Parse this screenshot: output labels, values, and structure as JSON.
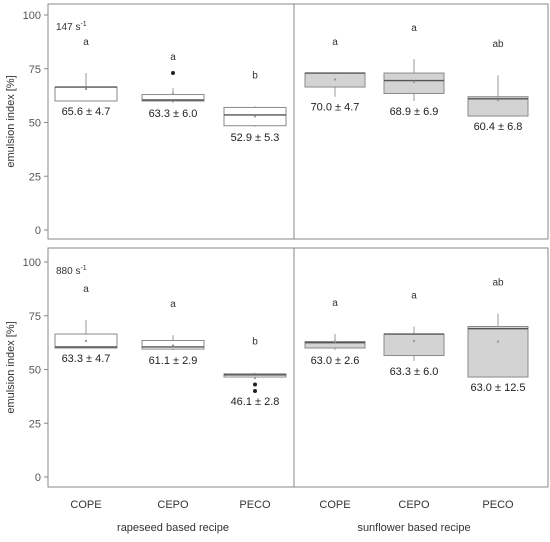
{
  "chart_data": {
    "type": "boxplot",
    "categories": [
      "COPE",
      "CEPO",
      "PECO"
    ],
    "groups": [
      {
        "name": "rapeseed based recipe",
        "fill": "#ffffff"
      },
      {
        "name": "sunflower based recipe",
        "fill": "#d3d3d3"
      }
    ],
    "ylabel": "emulsion index [%]",
    "ylim": [
      0,
      100
    ],
    "yticks": [
      "0",
      "25",
      "50",
      "75",
      "100"
    ],
    "rows": [
      {
        "rate_label": "147 s",
        "rate_sup": "-1",
        "boxes": [
          {
            "group": 0,
            "category": "COPE",
            "whisker_low": 60,
            "q1": 60,
            "median": 66.5,
            "q3": 66.5,
            "whisker_high": 73,
            "mean": 65.6,
            "outliers": [],
            "sig": "a",
            "label": "65.6 ± 4.7"
          },
          {
            "group": 0,
            "category": "CEPO",
            "whisker_low": 59,
            "q1": 60,
            "median": 60.5,
            "q3": 63,
            "whisker_high": 66,
            "mean": 63.3,
            "outliers": [
              73
            ],
            "sig": "a",
            "label": "63.3 ± 6.0"
          },
          {
            "group": 0,
            "category": "PECO",
            "whisker_low": 48,
            "q1": 48.5,
            "median": 53.5,
            "q3": 57,
            "whisker_high": 57.5,
            "mean": 52.9,
            "outliers": [],
            "sig": "b",
            "label": "52.9 ± 5.3"
          },
          {
            "group": 1,
            "category": "COPE",
            "whisker_low": 62,
            "q1": 66.5,
            "median": 73,
            "q3": 73,
            "whisker_high": 73,
            "mean": 70.0,
            "outliers": [],
            "sig": "a",
            "label": "70.0 ± 4.7"
          },
          {
            "group": 1,
            "category": "CEPO",
            "whisker_low": 60,
            "q1": 63.5,
            "median": 69.5,
            "q3": 73,
            "whisker_high": 79.5,
            "mean": 68.9,
            "outliers": [],
            "sig": "a",
            "label": "68.9 ± 6.9"
          },
          {
            "group": 1,
            "category": "PECO",
            "whisker_low": 53,
            "q1": 53,
            "median": 61,
            "q3": 62,
            "whisker_high": 72,
            "mean": 60.4,
            "outliers": [],
            "sig": "ab",
            "label": "60.4 ± 6.8"
          }
        ]
      },
      {
        "rate_label": "880 s",
        "rate_sup": "-1",
        "boxes": [
          {
            "group": 0,
            "category": "COPE",
            "whisker_low": 60,
            "q1": 60,
            "median": 60.5,
            "q3": 66.5,
            "whisker_high": 73,
            "mean": 63.3,
            "outliers": [],
            "sig": "a",
            "label": "63.3 ± 4.7"
          },
          {
            "group": 0,
            "category": "CEPO",
            "whisker_low": 59,
            "q1": 59.5,
            "median": 60.5,
            "q3": 63.5,
            "whisker_high": 66,
            "mean": 61.1,
            "outliers": [],
            "sig": "a",
            "label": "61.1 ± 2.9"
          },
          {
            "group": 0,
            "category": "PECO",
            "whisker_low": 46.5,
            "q1": 46.5,
            "median": 47.5,
            "q3": 48,
            "whisker_high": 48.5,
            "mean": 46.1,
            "outliers": [
              43,
              40
            ],
            "sig": "b",
            "label": "46.1 ± 2.8"
          },
          {
            "group": 1,
            "category": "COPE",
            "whisker_low": 59,
            "q1": 60,
            "median": 62.5,
            "q3": 63,
            "whisker_high": 66.5,
            "mean": 63.0,
            "outliers": [],
            "sig": "a",
            "label": "63.0 ± 2.6"
          },
          {
            "group": 1,
            "category": "CEPO",
            "whisker_low": 54,
            "q1": 56.5,
            "median": 66.5,
            "q3": 66.5,
            "whisker_high": 70,
            "mean": 63.3,
            "outliers": [],
            "sig": "a",
            "label": "63.3 ± 6.0"
          },
          {
            "group": 1,
            "category": "PECO",
            "whisker_low": 46.5,
            "q1": 46.5,
            "median": 69,
            "q3": 70,
            "whisker_high": 76,
            "mean": 63.0,
            "outliers": [],
            "sig": "ab",
            "label": "63.0 ± 12.5"
          }
        ]
      }
    ]
  }
}
